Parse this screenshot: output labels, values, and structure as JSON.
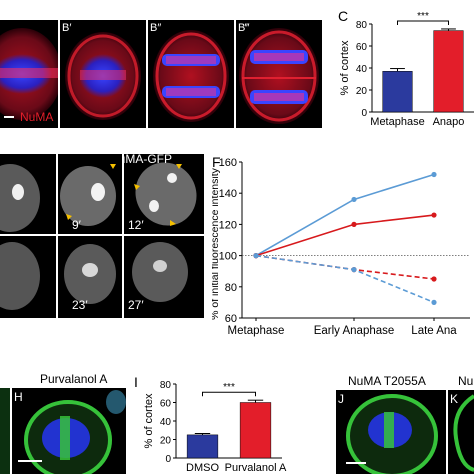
{
  "panel_labels": {
    "b1": "B′",
    "b2": "B″",
    "b3": "B‴",
    "c": "C",
    "f": "F",
    "h": "H",
    "i": "I",
    "j": "J",
    "k": "K"
  },
  "top_left": {
    "stain": "NuMA"
  },
  "timelapse": {
    "marker": "NuMA-GFP",
    "times": [
      "9′",
      "12′",
      "23′",
      "27′"
    ]
  },
  "panel_h": {
    "title": "Purvalanol A"
  },
  "panel_j": {
    "title": "NuMA T2055A"
  },
  "panel_k": {
    "title": "Nu"
  },
  "colors": {
    "blue": "#2b3a9e",
    "red": "#e31e2a",
    "line_blue": "#5b9bd5",
    "line_red": "#d7191c"
  },
  "chart_data": [
    {
      "id": "C",
      "type": "bar",
      "categories": [
        "Metaphase",
        "Anapo"
      ],
      "values": [
        37,
        74
      ],
      "errors": [
        2.5,
        1.5
      ],
      "ylabel": "% of cortex",
      "ylim": [
        0,
        80
      ],
      "yticks": [
        0,
        20,
        40,
        60,
        80
      ],
      "significance": "***"
    },
    {
      "id": "F",
      "type": "line",
      "categories": [
        "Metaphase",
        "Early Anaphase",
        "Late Ana"
      ],
      "ylabel": "% of initial fluorescence intensity",
      "ylim": [
        60,
        160
      ],
      "yticks": [
        60,
        80,
        100,
        120,
        140,
        160
      ],
      "reference": 100,
      "series": [
        {
          "values": [
            100,
            136,
            152
          ],
          "style": "solid",
          "color": "#5b9bd5"
        },
        {
          "values": [
            100,
            120,
            126
          ],
          "style": "solid",
          "color": "#d7191c"
        },
        {
          "values": [
            100,
            91,
            85
          ],
          "style": "dashed",
          "color": "#d7191c"
        },
        {
          "values": [
            100,
            91,
            70
          ],
          "style": "dashed",
          "color": "#5b9bd5"
        }
      ]
    },
    {
      "id": "I",
      "type": "bar",
      "categories": [
        "DMSO",
        "Purvalanol A"
      ],
      "values": [
        25,
        60
      ],
      "errors": [
        1.5,
        2.5
      ],
      "ylabel": "% of cortex",
      "ylim": [
        0,
        80
      ],
      "yticks": [
        0,
        20,
        40,
        60,
        80
      ],
      "significance": "***"
    }
  ]
}
